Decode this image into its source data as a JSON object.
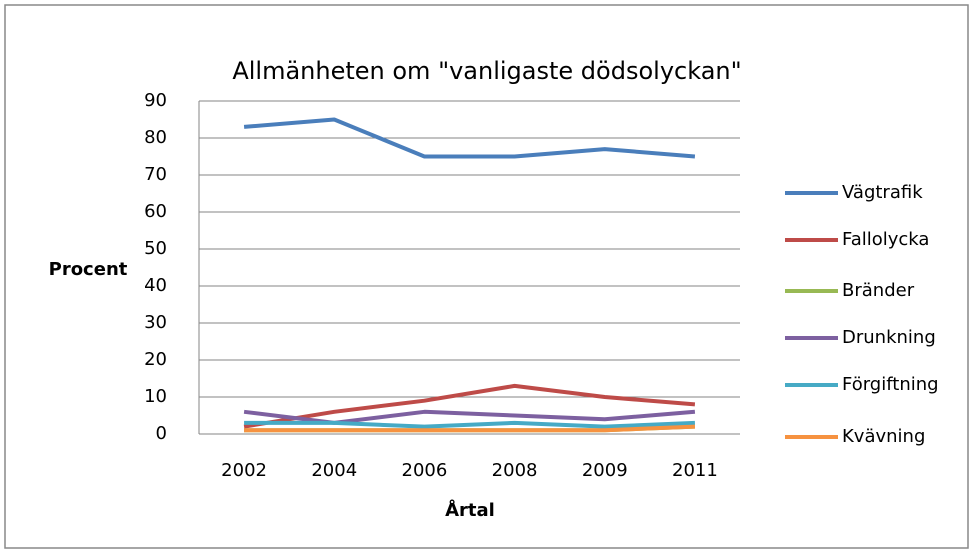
{
  "chart_data": {
    "type": "line",
    "title": "Allmänheten om \"vanligaste dödsolyckan\"",
    "x_label": "Årtal",
    "y_label": "Procent",
    "categories": [
      "2002",
      "2004",
      "2006",
      "2008",
      "2009",
      "2011"
    ],
    "series": [
      {
        "name": "Vägtrafik",
        "color": "#4a7ebb",
        "values": [
          83,
          85,
          75,
          75,
          77,
          75
        ]
      },
      {
        "name": "Fallolycka",
        "color": "#be4b48",
        "values": [
          2,
          6,
          9,
          13,
          10,
          8
        ]
      },
      {
        "name": "Bränder",
        "color": "#98b954",
        "values": [
          1,
          1,
          1,
          1,
          1,
          2
        ]
      },
      {
        "name": "Drunkning",
        "color": "#7d60a0",
        "values": [
          6,
          3,
          6,
          5,
          4,
          6
        ]
      },
      {
        "name": "Förgiftning",
        "color": "#46aac5",
        "values": [
          3,
          3,
          2,
          3,
          2,
          3
        ]
      },
      {
        "name": "Kvävning",
        "color": "#f69240",
        "values": [
          1,
          1,
          1,
          1,
          1,
          2
        ]
      }
    ],
    "ylim": [
      0,
      90
    ],
    "yticks": [
      0,
      10,
      20,
      30,
      40,
      50,
      60,
      70,
      80,
      90
    ],
    "grid": true,
    "legend": "right"
  }
}
